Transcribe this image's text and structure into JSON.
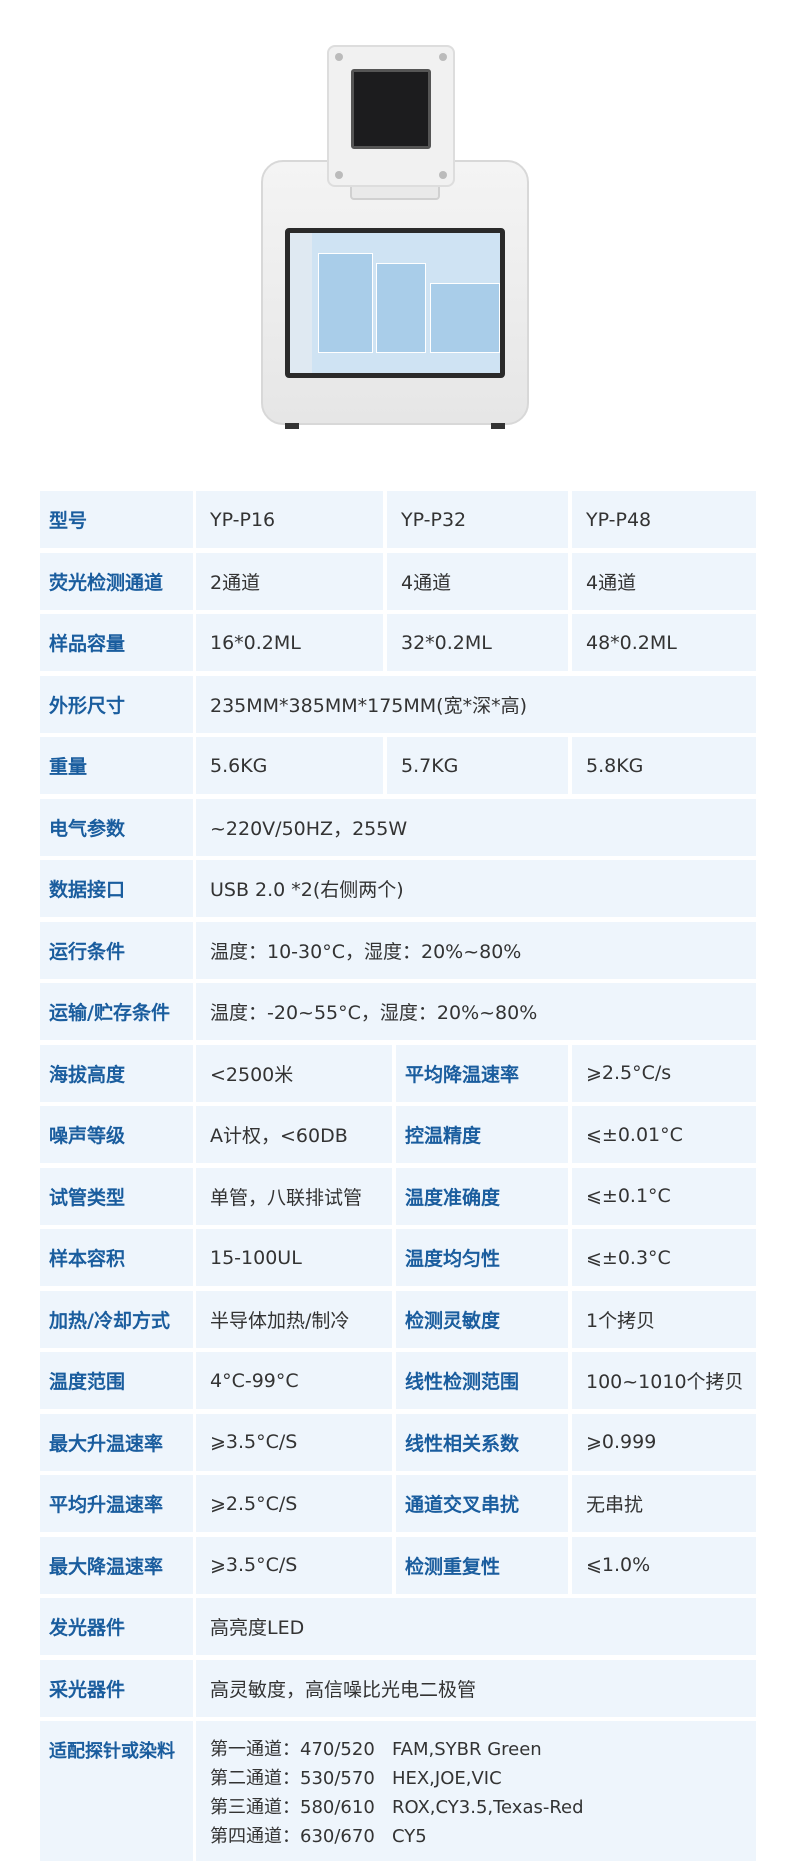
{
  "rows": [
    {
      "label": "型号",
      "values": [
        "YP-P16",
        "YP-P32",
        "YP-P48"
      ]
    },
    {
      "label": "荧光检测通道",
      "values": [
        "2通道",
        "4通道",
        "4通道"
      ]
    },
    {
      "label": "样品容量",
      "values": [
        "16*0.2ML",
        "32*0.2ML",
        "48*0.2ML"
      ]
    },
    {
      "label": "外形尺寸",
      "values": [
        "235MM*385MM*175MM(宽*深*高)"
      ]
    },
    {
      "label": "重量",
      "values": [
        "5.6KG",
        "5.7KG",
        "5.8KG"
      ]
    },
    {
      "label": "电气参数",
      "values": [
        "~220V/50HZ，255W"
      ]
    },
    {
      "label": "数据接口",
      "values": [
        "USB 2.0 *2(右侧两个)"
      ]
    },
    {
      "label": "运行条件",
      "values": [
        "温度：10-30°C，湿度：20%~80%"
      ]
    },
    {
      "label": "运输/贮存条件",
      "values": [
        "温度：-20~55°C，湿度：20%~80%"
      ]
    },
    {
      "label": "海拔高度",
      "values": [
        "<2500米"
      ],
      "label2": "平均降温速率",
      "value2": "⩾2.5°C/s"
    },
    {
      "label": "噪声等级",
      "values": [
        "A计权，<60DB"
      ],
      "label2": "控温精度",
      "value2": "⩽±0.01°C"
    },
    {
      "label": "试管类型",
      "values": [
        "单管，八联排试管"
      ],
      "label2": "温度准确度",
      "value2": "⩽±0.1°C"
    },
    {
      "label": "样本容积",
      "values": [
        "15-100UL"
      ],
      "label2": "温度均匀性",
      "value2": "⩽±0.3°C"
    },
    {
      "label": "加热/冷却方式",
      "values": [
        "半导体加热/制冷"
      ],
      "label2": "检测灵敏度",
      "value2": "1个拷贝"
    },
    {
      "label": "温度范围",
      "values": [
        "4°C-99°C"
      ],
      "label2": "线性检测范围",
      "value2": "100~1010个拷贝"
    },
    {
      "label": "最大升温速率",
      "values": [
        "⩾3.5°C/S"
      ],
      "label2": "线性相关系数",
      "value2": "⩾0.999"
    },
    {
      "label": "平均升温速率",
      "values": [
        "⩾2.5°C/S"
      ],
      "label2": "通道交叉串扰",
      "value2": "无串扰"
    },
    {
      "label": "最大降温速率",
      "values": [
        "⩾3.5°C/S"
      ],
      "label2": "检测重复性",
      "value2": "⩽1.0%"
    },
    {
      "label": "发光器件",
      "values": [
        "高亮度LED"
      ]
    },
    {
      "label": "采光器件",
      "values": [
        "高灵敏度，高信噪比光电二极管"
      ]
    }
  ],
  "dyes": {
    "label": "适配探针或染料",
    "lines": [
      "第一通道：470/520   FAM,SYBR Green",
      "第二通道：530/570   HEX,JOE,VIC",
      "第三通道：580/610   ROX,CY3.5,Texas-Red",
      "第四通道：630/670   CY5"
    ]
  }
}
